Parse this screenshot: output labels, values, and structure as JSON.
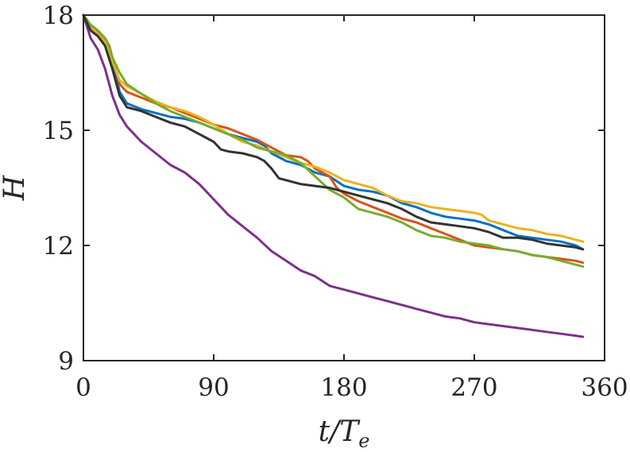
{
  "chart_data": {
    "type": "line",
    "title": "",
    "xlabel": "t/T_e",
    "ylabel": "H",
    "xlim": [
      0,
      360
    ],
    "ylim": [
      9,
      18
    ],
    "xticks": [
      0,
      90,
      180,
      270,
      360
    ],
    "yticks": [
      9,
      12,
      15,
      18
    ],
    "x_tick_labels": [
      "0",
      "90",
      "180",
      "270",
      "360"
    ],
    "y_tick_labels": [
      "9",
      "12",
      "15",
      "18"
    ],
    "grid": false,
    "legend": "none",
    "series": [
      {
        "color": "#0072BD",
        "points": [
          [
            0,
            18
          ],
          [
            5,
            17.7
          ],
          [
            10,
            17.5
          ],
          [
            15,
            17.3
          ],
          [
            20,
            16.8
          ],
          [
            25,
            16.0
          ],
          [
            30,
            15.7
          ],
          [
            40,
            15.55
          ],
          [
            50,
            15.45
          ],
          [
            60,
            15.35
          ],
          [
            70,
            15.3
          ],
          [
            80,
            15.2
          ],
          [
            90,
            15.05
          ],
          [
            100,
            14.9
          ],
          [
            110,
            14.8
          ],
          [
            120,
            14.7
          ],
          [
            125,
            14.6
          ],
          [
            130,
            14.4
          ],
          [
            140,
            14.2
          ],
          [
            150,
            14.1
          ],
          [
            160,
            13.9
          ],
          [
            170,
            13.8
          ],
          [
            180,
            13.55
          ],
          [
            190,
            13.45
          ],
          [
            200,
            13.4
          ],
          [
            210,
            13.3
          ],
          [
            220,
            13.1
          ],
          [
            230,
            13.0
          ],
          [
            240,
            12.85
          ],
          [
            250,
            12.75
          ],
          [
            260,
            12.7
          ],
          [
            270,
            12.65
          ],
          [
            280,
            12.55
          ],
          [
            290,
            12.4
          ],
          [
            300,
            12.25
          ],
          [
            310,
            12.2
          ],
          [
            320,
            12.15
          ],
          [
            330,
            12.1
          ],
          [
            340,
            12.0
          ],
          [
            345,
            11.9
          ]
        ]
      },
      {
        "color": "#D95319",
        "points": [
          [
            0,
            18
          ],
          [
            5,
            17.7
          ],
          [
            10,
            17.55
          ],
          [
            15,
            17.35
          ],
          [
            20,
            16.9
          ],
          [
            25,
            16.2
          ],
          [
            30,
            16.0
          ],
          [
            40,
            15.85
          ],
          [
            50,
            15.7
          ],
          [
            60,
            15.6
          ],
          [
            70,
            15.45
          ],
          [
            80,
            15.3
          ],
          [
            90,
            15.15
          ],
          [
            100,
            15.05
          ],
          [
            110,
            14.9
          ],
          [
            120,
            14.75
          ],
          [
            130,
            14.55
          ],
          [
            140,
            14.35
          ],
          [
            150,
            14.3
          ],
          [
            155,
            14.2
          ],
          [
            160,
            14.0
          ],
          [
            170,
            13.8
          ],
          [
            175,
            13.5
          ],
          [
            180,
            13.35
          ],
          [
            190,
            13.15
          ],
          [
            200,
            13.0
          ],
          [
            210,
            12.85
          ],
          [
            220,
            12.7
          ],
          [
            230,
            12.6
          ],
          [
            240,
            12.45
          ],
          [
            250,
            12.3
          ],
          [
            260,
            12.15
          ],
          [
            270,
            12.0
          ],
          [
            280,
            11.95
          ],
          [
            290,
            11.9
          ],
          [
            300,
            11.85
          ],
          [
            310,
            11.75
          ],
          [
            320,
            11.7
          ],
          [
            330,
            11.65
          ],
          [
            340,
            11.6
          ],
          [
            345,
            11.55
          ]
        ]
      },
      {
        "color": "#EDB120",
        "points": [
          [
            0,
            18
          ],
          [
            5,
            17.7
          ],
          [
            10,
            17.5
          ],
          [
            15,
            17.3
          ],
          [
            20,
            16.8
          ],
          [
            25,
            16.3
          ],
          [
            30,
            16.15
          ],
          [
            40,
            15.95
          ],
          [
            50,
            15.75
          ],
          [
            60,
            15.6
          ],
          [
            70,
            15.5
          ],
          [
            80,
            15.35
          ],
          [
            90,
            15.15
          ],
          [
            100,
            14.9
          ],
          [
            110,
            14.7
          ],
          [
            120,
            14.6
          ],
          [
            130,
            14.45
          ],
          [
            140,
            14.3
          ],
          [
            150,
            14.15
          ],
          [
            160,
            14.05
          ],
          [
            170,
            13.9
          ],
          [
            180,
            13.7
          ],
          [
            190,
            13.6
          ],
          [
            200,
            13.5
          ],
          [
            210,
            13.3
          ],
          [
            220,
            13.15
          ],
          [
            230,
            13.1
          ],
          [
            240,
            13.0
          ],
          [
            250,
            12.95
          ],
          [
            260,
            12.9
          ],
          [
            270,
            12.85
          ],
          [
            275,
            12.8
          ],
          [
            280,
            12.65
          ],
          [
            290,
            12.55
          ],
          [
            300,
            12.45
          ],
          [
            310,
            12.4
          ],
          [
            320,
            12.3
          ],
          [
            330,
            12.25
          ],
          [
            340,
            12.15
          ],
          [
            345,
            12.1
          ]
        ]
      },
      {
        "color": "#7E2F8E",
        "points": [
          [
            0,
            18
          ],
          [
            5,
            17.4
          ],
          [
            10,
            17.1
          ],
          [
            15,
            16.6
          ],
          [
            20,
            15.9
          ],
          [
            25,
            15.4
          ],
          [
            30,
            15.1
          ],
          [
            40,
            14.7
          ],
          [
            50,
            14.4
          ],
          [
            60,
            14.1
          ],
          [
            70,
            13.9
          ],
          [
            80,
            13.6
          ],
          [
            90,
            13.2
          ],
          [
            100,
            12.8
          ],
          [
            110,
            12.5
          ],
          [
            120,
            12.2
          ],
          [
            130,
            11.85
          ],
          [
            140,
            11.6
          ],
          [
            150,
            11.35
          ],
          [
            160,
            11.2
          ],
          [
            170,
            10.95
          ],
          [
            180,
            10.85
          ],
          [
            190,
            10.75
          ],
          [
            200,
            10.65
          ],
          [
            210,
            10.55
          ],
          [
            220,
            10.45
          ],
          [
            230,
            10.35
          ],
          [
            240,
            10.25
          ],
          [
            250,
            10.15
          ],
          [
            260,
            10.1
          ],
          [
            270,
            10.0
          ],
          [
            280,
            9.95
          ],
          [
            290,
            9.9
          ],
          [
            300,
            9.85
          ],
          [
            310,
            9.8
          ],
          [
            320,
            9.75
          ],
          [
            330,
            9.7
          ],
          [
            340,
            9.65
          ],
          [
            345,
            9.62
          ]
        ]
      },
      {
        "color": "#77AC30",
        "points": [
          [
            0,
            18
          ],
          [
            5,
            17.75
          ],
          [
            10,
            17.6
          ],
          [
            15,
            17.4
          ],
          [
            18,
            17.2
          ],
          [
            20,
            16.9
          ],
          [
            25,
            16.5
          ],
          [
            30,
            16.2
          ],
          [
            40,
            15.95
          ],
          [
            50,
            15.7
          ],
          [
            60,
            15.5
          ],
          [
            70,
            15.35
          ],
          [
            80,
            15.2
          ],
          [
            90,
            15.05
          ],
          [
            100,
            14.9
          ],
          [
            110,
            14.75
          ],
          [
            120,
            14.55
          ],
          [
            130,
            14.45
          ],
          [
            140,
            14.35
          ],
          [
            150,
            14.15
          ],
          [
            160,
            13.8
          ],
          [
            170,
            13.45
          ],
          [
            180,
            13.25
          ],
          [
            190,
            12.95
          ],
          [
            200,
            12.85
          ],
          [
            210,
            12.75
          ],
          [
            220,
            12.6
          ],
          [
            230,
            12.4
          ],
          [
            240,
            12.25
          ],
          [
            250,
            12.2
          ],
          [
            260,
            12.1
          ],
          [
            270,
            12.05
          ],
          [
            280,
            12.0
          ],
          [
            290,
            11.9
          ],
          [
            300,
            11.85
          ],
          [
            310,
            11.75
          ],
          [
            320,
            11.7
          ],
          [
            330,
            11.6
          ],
          [
            340,
            11.5
          ],
          [
            345,
            11.45
          ]
        ]
      },
      {
        "color": "#333333",
        "points": [
          [
            0,
            18
          ],
          [
            5,
            17.6
          ],
          [
            10,
            17.45
          ],
          [
            15,
            17.2
          ],
          [
            20,
            16.6
          ],
          [
            25,
            15.9
          ],
          [
            30,
            15.6
          ],
          [
            40,
            15.5
          ],
          [
            50,
            15.35
          ],
          [
            60,
            15.2
          ],
          [
            70,
            15.1
          ],
          [
            80,
            14.9
          ],
          [
            90,
            14.7
          ],
          [
            95,
            14.5
          ],
          [
            100,
            14.45
          ],
          [
            110,
            14.4
          ],
          [
            120,
            14.3
          ],
          [
            125,
            14.2
          ],
          [
            130,
            14.0
          ],
          [
            135,
            13.75
          ],
          [
            140,
            13.7
          ],
          [
            150,
            13.6
          ],
          [
            160,
            13.55
          ],
          [
            170,
            13.5
          ],
          [
            180,
            13.4
          ],
          [
            190,
            13.3
          ],
          [
            200,
            13.2
          ],
          [
            210,
            13.1
          ],
          [
            220,
            12.95
          ],
          [
            230,
            12.75
          ],
          [
            240,
            12.6
          ],
          [
            250,
            12.55
          ],
          [
            260,
            12.5
          ],
          [
            270,
            12.45
          ],
          [
            280,
            12.35
          ],
          [
            290,
            12.2
          ],
          [
            300,
            12.2
          ],
          [
            310,
            12.15
          ],
          [
            320,
            12.05
          ],
          [
            330,
            12.0
          ],
          [
            340,
            11.95
          ],
          [
            345,
            11.9
          ]
        ]
      }
    ]
  }
}
